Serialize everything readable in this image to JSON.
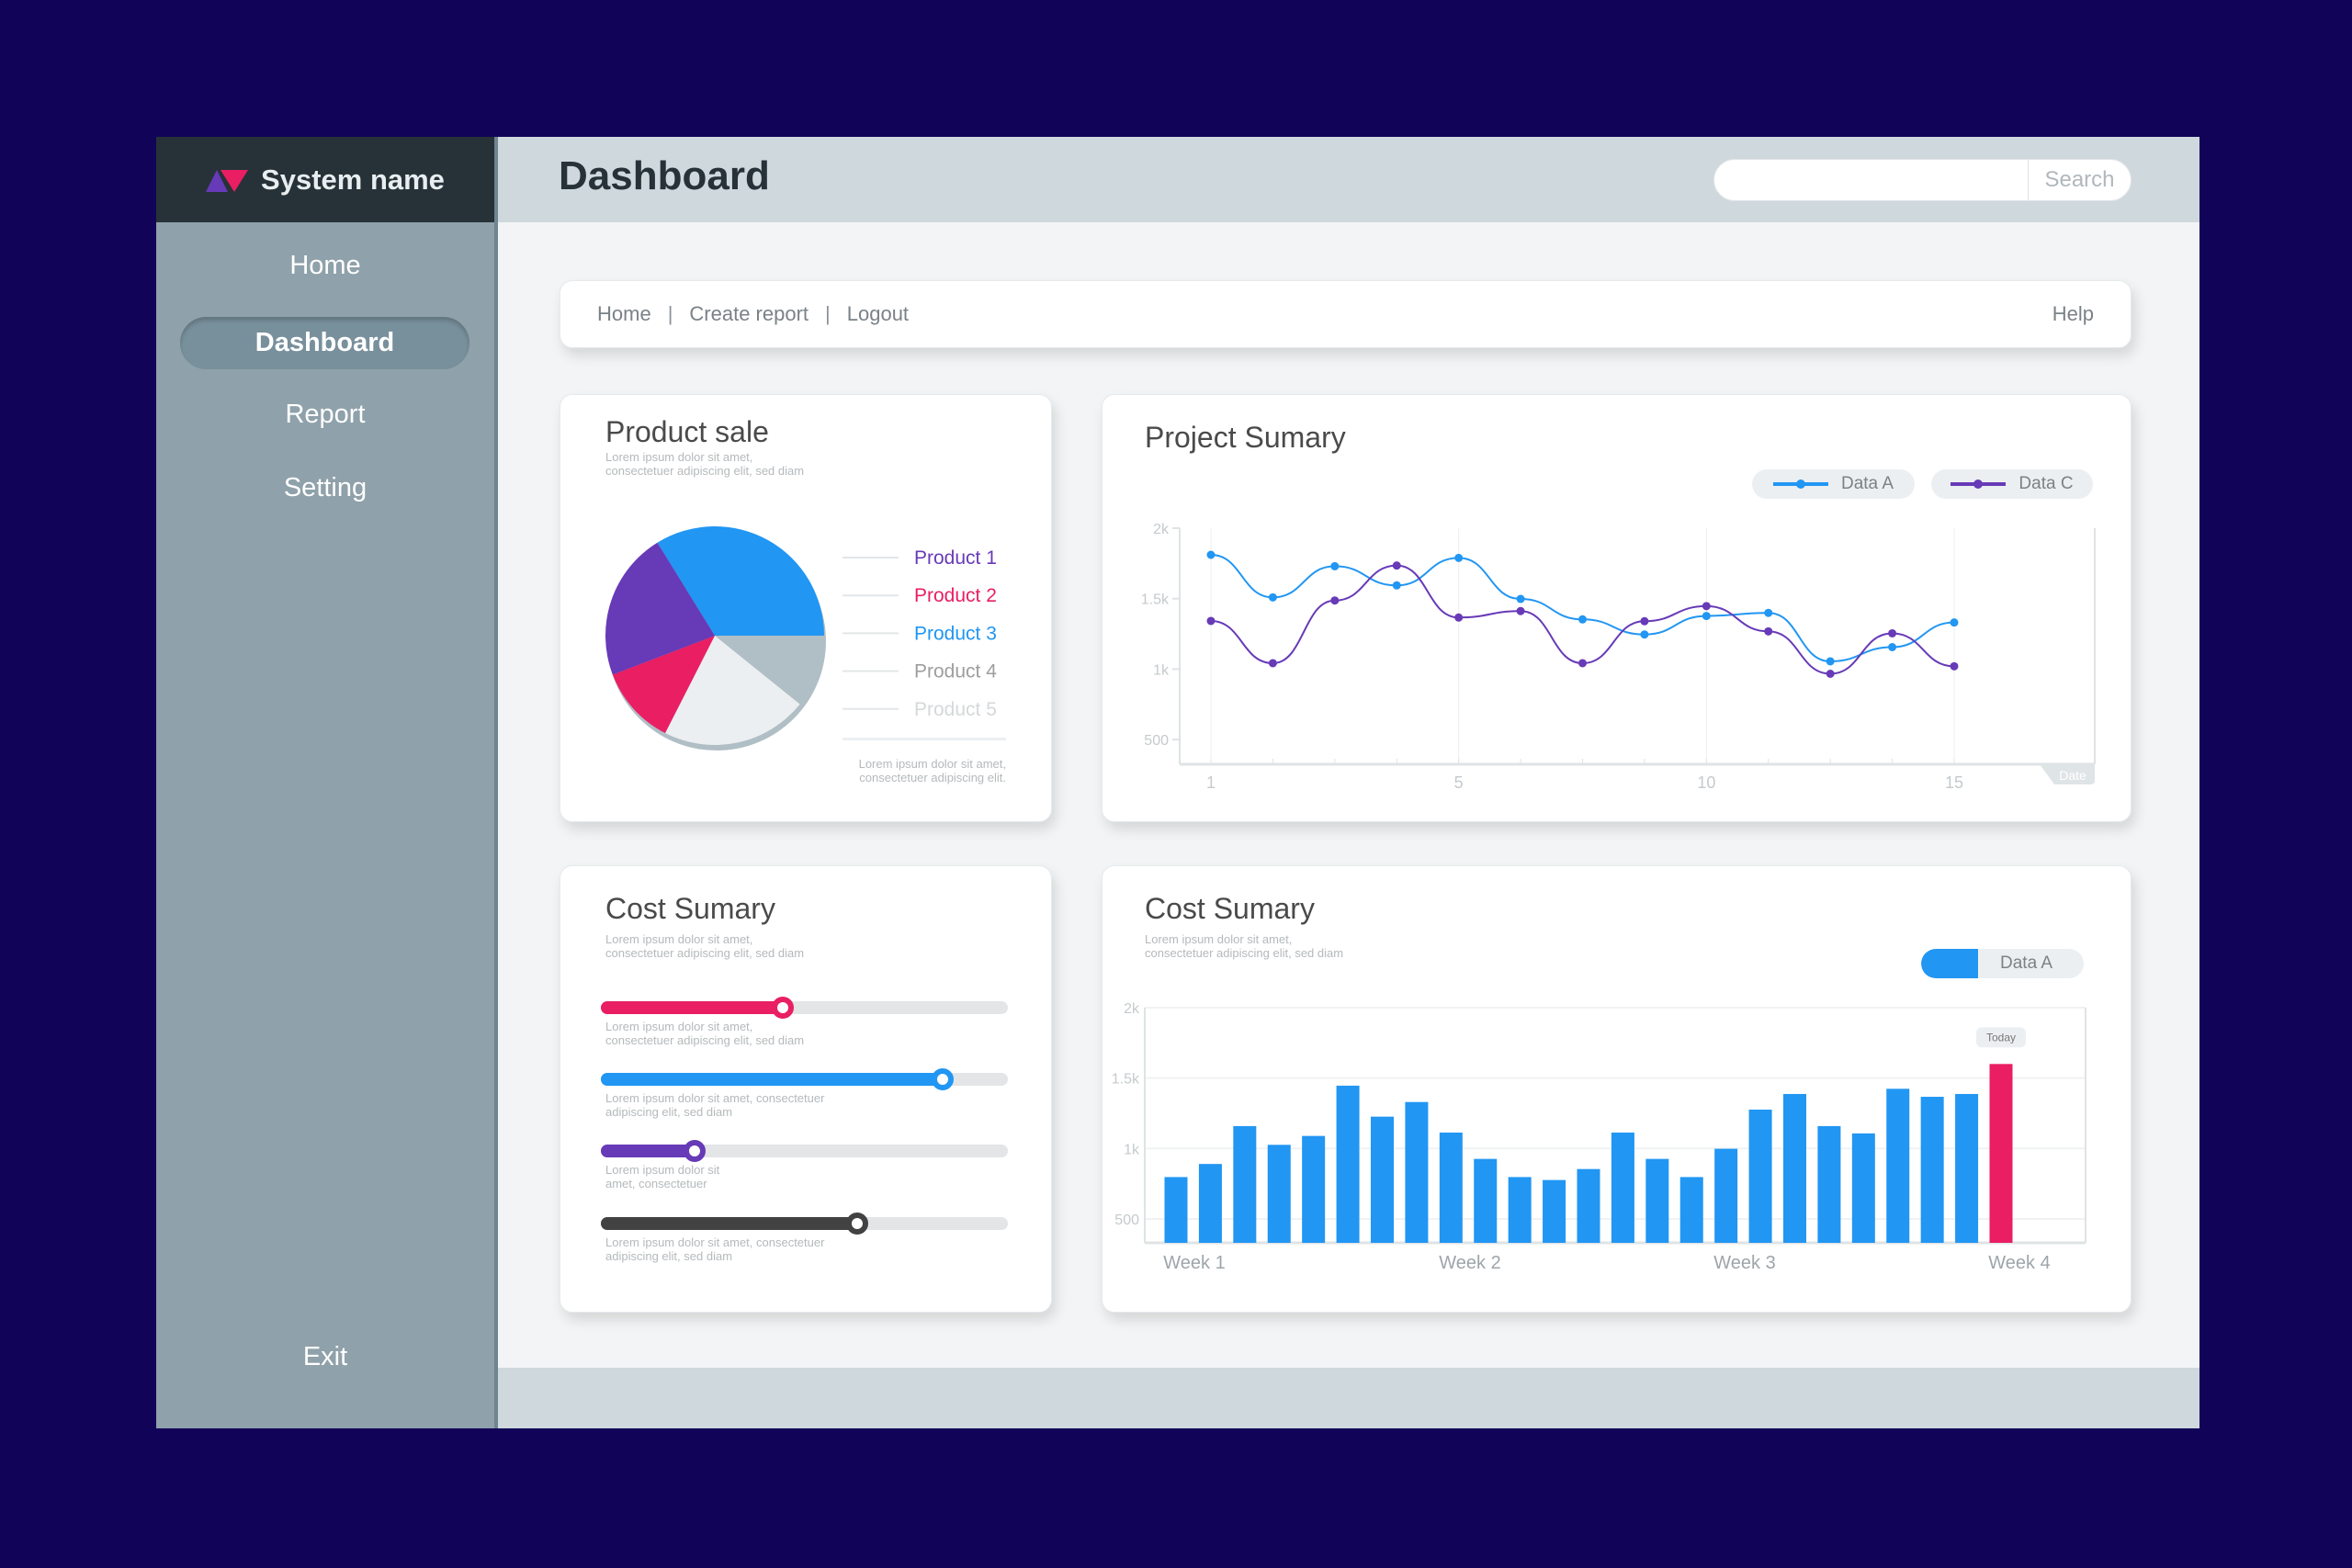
{
  "sidebar": {
    "brand": "System name",
    "items": [
      {
        "label": "Home"
      },
      {
        "label": "Dashboard"
      },
      {
        "label": "Report"
      },
      {
        "label": "Setting"
      }
    ],
    "exit": "Exit"
  },
  "header": {
    "title": "Dashboard",
    "search_placeholder": "",
    "search_button": "Search"
  },
  "topnav": {
    "home": "Home",
    "create_report": "Create report",
    "logout": "Logout",
    "separator": "|",
    "help": "Help"
  },
  "colors": {
    "blue": "#2196f3",
    "purple": "#673ab7",
    "red": "#e91e63",
    "grey": "#b0bec5",
    "light": "#eceff1",
    "dark": "#424242"
  },
  "product_sale": {
    "title": "Product sale",
    "desc1": "Lorem ipsum dolor sit amet,",
    "desc2": "consectetuer adipiscing elit, sed diam",
    "foot1": "Lorem ipsum dolor sit amet,",
    "foot2": "consectetuer adipiscing elit."
  },
  "project_summary": {
    "title": "Project Sumary"
  },
  "cost_sliders": {
    "title": "Cost Sumary",
    "desc1": "Lorem ipsum dolor sit amet,",
    "desc2": "consectetuer adipiscing elit, sed diam",
    "sliders": [
      {
        "value": 0.446,
        "color": "#e91e63",
        "l1": "Lorem ipsum dolor sit amet,",
        "l2": "consectetuer adipiscing elit, sed diam"
      },
      {
        "value": 0.84,
        "color": "#2196f3",
        "l1": "Lorem ipsum dolor sit amet, consectetuer",
        "l2": "adipiscing elit, sed diam"
      },
      {
        "value": 0.23,
        "color": "#673ab7",
        "l1": "Lorem ipsum dolor sit",
        "l2": "amet, consectetuer"
      },
      {
        "value": 0.63,
        "color": "#424242",
        "l1": "Lorem ipsum dolor sit amet, consectetuer",
        "l2": "adipiscing elit, sed diam"
      }
    ]
  },
  "cost_bars": {
    "title": "Cost Sumary",
    "desc1": "Lorem ipsum dolor sit amet,",
    "desc2": "consectetuer adipiscing elit, sed diam"
  },
  "chart_data": [
    {
      "type": "pie",
      "title": "Product sale",
      "slices": [
        {
          "label": "Product 1",
          "value": 22,
          "color": "#673ab7"
        },
        {
          "label": "Product 2",
          "value": 11.7,
          "color": "#e91e63"
        },
        {
          "label": "Product 3",
          "value": 33.8,
          "color": "#2196f3"
        },
        {
          "label": "Product 4",
          "value": 10.8,
          "color": "#b0bec5"
        },
        {
          "label": "Product 5",
          "value": 21.7,
          "color": "#eceff1"
        }
      ]
    },
    {
      "type": "line",
      "title": "Project Sumary",
      "xlabel": "Date",
      "ylim": [
        325,
        2000
      ],
      "yticks": [
        {
          "v": 2000,
          "label": "2k"
        },
        {
          "v": 1500,
          "label": "1.5k"
        },
        {
          "v": 1000,
          "label": "1k"
        },
        {
          "v": 500,
          "label": "500"
        }
      ],
      "xticks": [
        {
          "i": 0,
          "label": "1"
        },
        {
          "i": 4,
          "label": "5"
        },
        {
          "i": 8,
          "label": "10"
        },
        {
          "i": 12,
          "label": "15"
        }
      ],
      "series": [
        {
          "name": "Data A",
          "color": "#2196f3",
          "values": [
            1811,
            1509,
            1730,
            1594,
            1789,
            1498,
            1353,
            1246,
            1377,
            1399,
            1055,
            1156,
            1331
          ]
        },
        {
          "name": "Data C",
          "color": "#673ab7",
          "values": [
            1342,
            1042,
            1487,
            1735,
            1366,
            1412,
            1042,
            1340,
            1447,
            1268,
            967,
            1254,
            1020
          ]
        }
      ]
    },
    {
      "type": "bar",
      "title": "Cost Sumary",
      "ylim": [
        330,
        2000
      ],
      "yticks": [
        {
          "v": 2000,
          "label": "2k"
        },
        {
          "v": 1500,
          "label": "1.5k"
        },
        {
          "v": 1000,
          "label": "1k"
        },
        {
          "v": 500,
          "label": "500"
        }
      ],
      "xticks": [
        "Week 1",
        "Week 2",
        "Week 3",
        "Week 4"
      ],
      "legend": "Data A",
      "highlight_label": "Today",
      "highlight_color": "#e91e63",
      "color": "#2196f3",
      "values": [
        797,
        890,
        1159,
        1026,
        1089,
        1446,
        1226,
        1330,
        1113,
        926,
        797,
        776,
        854,
        1113,
        926,
        797,
        998,
        1276,
        1387,
        1159,
        1107,
        1424,
        1367,
        1387,
        1600
      ]
    }
  ]
}
